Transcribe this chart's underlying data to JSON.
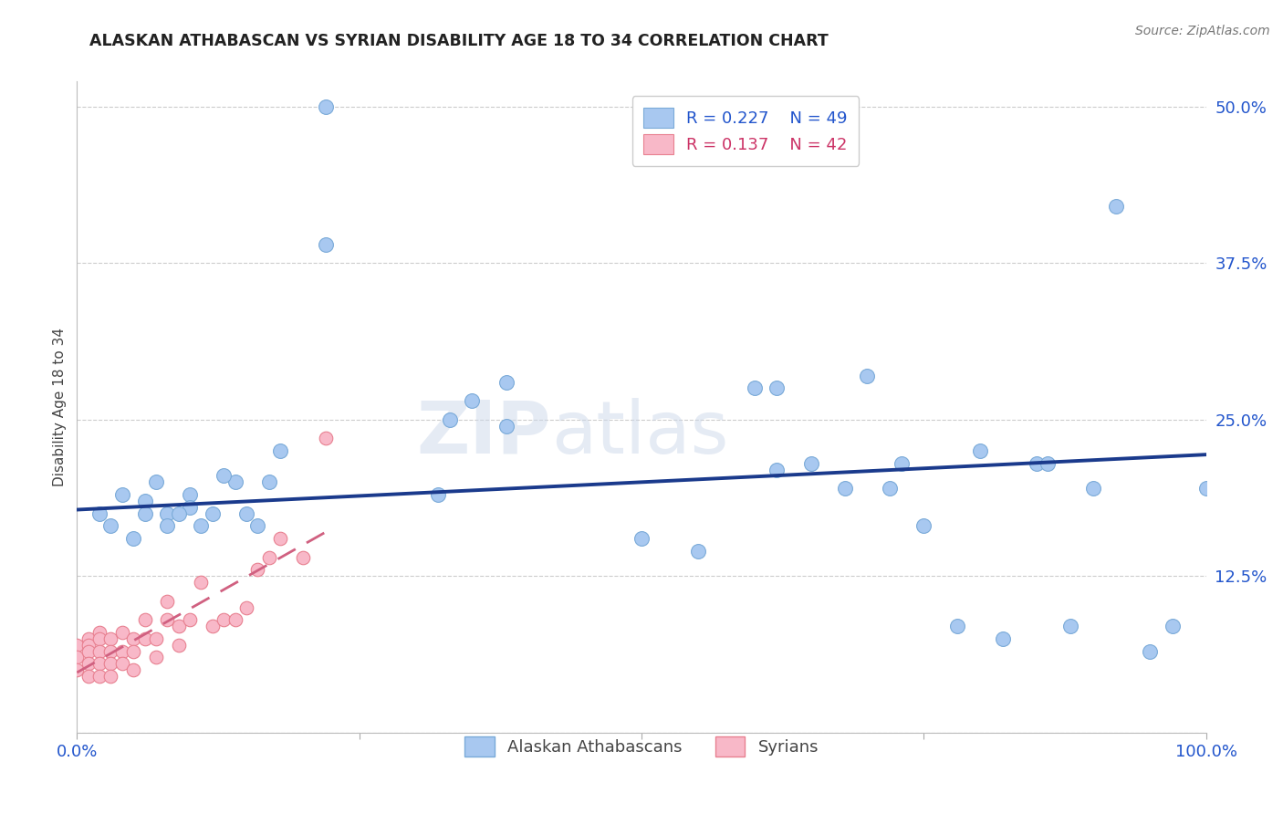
{
  "title": "ALASKAN ATHABASCAN VS SYRIAN DISABILITY AGE 18 TO 34 CORRELATION CHART",
  "source": "Source: ZipAtlas.com",
  "ylabel": "Disability Age 18 to 34",
  "xlim": [
    0.0,
    1.0
  ],
  "ylim": [
    0.0,
    0.52
  ],
  "xticks": [
    0.0,
    0.25,
    0.5,
    0.75,
    1.0
  ],
  "xtick_labels": [
    "0.0%",
    "",
    "",
    "",
    "100.0%"
  ],
  "yticks": [
    0.0,
    0.125,
    0.25,
    0.375,
    0.5
  ],
  "ytick_labels": [
    "",
    "12.5%",
    "25.0%",
    "37.5%",
    "50.0%"
  ],
  "legend_blue_r": "R = 0.227",
  "legend_blue_n": "N = 49",
  "legend_pink_r": "R = 0.137",
  "legend_pink_n": "N = 42",
  "blue_color": "#a8c8f0",
  "blue_edge": "#7aaad8",
  "pink_color": "#f8b8c8",
  "pink_edge": "#e88090",
  "trendline_blue_color": "#1a3a8c",
  "trendline_pink_color": "#d06080",
  "grid_color": "#cccccc",
  "background_color": "#ffffff",
  "blue_x": [
    0.22,
    0.22,
    0.04,
    0.07,
    0.08,
    0.1,
    0.1,
    0.12,
    0.14,
    0.15,
    0.17,
    0.32,
    0.33,
    0.35,
    0.38,
    0.38,
    0.5,
    0.6,
    0.62,
    0.65,
    0.68,
    0.7,
    0.72,
    0.75,
    0.78,
    0.8,
    0.82,
    0.85,
    0.88,
    0.92,
    0.95,
    0.97,
    1.0,
    0.02,
    0.03,
    0.05,
    0.06,
    0.06,
    0.08,
    0.09,
    0.11,
    0.13,
    0.16,
    0.18,
    0.55,
    0.62,
    0.73,
    0.86,
    0.9
  ],
  "blue_y": [
    0.5,
    0.39,
    0.19,
    0.2,
    0.175,
    0.19,
    0.18,
    0.175,
    0.2,
    0.175,
    0.2,
    0.19,
    0.25,
    0.265,
    0.28,
    0.245,
    0.155,
    0.275,
    0.275,
    0.215,
    0.195,
    0.285,
    0.195,
    0.165,
    0.085,
    0.225,
    0.075,
    0.215,
    0.085,
    0.42,
    0.065,
    0.085,
    0.195,
    0.175,
    0.165,
    0.155,
    0.185,
    0.175,
    0.165,
    0.175,
    0.165,
    0.205,
    0.165,
    0.225,
    0.145,
    0.21,
    0.215,
    0.215,
    0.195
  ],
  "pink_x": [
    0.0,
    0.0,
    0.0,
    0.01,
    0.01,
    0.01,
    0.01,
    0.01,
    0.02,
    0.02,
    0.02,
    0.02,
    0.02,
    0.03,
    0.03,
    0.03,
    0.03,
    0.04,
    0.04,
    0.04,
    0.05,
    0.05,
    0.05,
    0.06,
    0.06,
    0.07,
    0.07,
    0.08,
    0.08,
    0.09,
    0.09,
    0.1,
    0.11,
    0.12,
    0.13,
    0.14,
    0.15,
    0.16,
    0.17,
    0.18,
    0.2,
    0.22
  ],
  "pink_y": [
    0.07,
    0.06,
    0.05,
    0.075,
    0.07,
    0.065,
    0.055,
    0.045,
    0.08,
    0.075,
    0.065,
    0.055,
    0.045,
    0.075,
    0.065,
    0.055,
    0.045,
    0.08,
    0.065,
    0.055,
    0.075,
    0.065,
    0.05,
    0.09,
    0.075,
    0.075,
    0.06,
    0.105,
    0.09,
    0.085,
    0.07,
    0.09,
    0.12,
    0.085,
    0.09,
    0.09,
    0.1,
    0.13,
    0.14,
    0.155,
    0.14,
    0.235
  ],
  "blue_trend_x": [
    0.0,
    1.0
  ],
  "blue_trend_y": [
    0.178,
    0.222
  ],
  "pink_trend_x": [
    0.0,
    0.22
  ],
  "pink_trend_y": [
    0.048,
    0.16
  ],
  "bottom_legend_labels": [
    "Alaskan Athabascans",
    "Syrians"
  ]
}
